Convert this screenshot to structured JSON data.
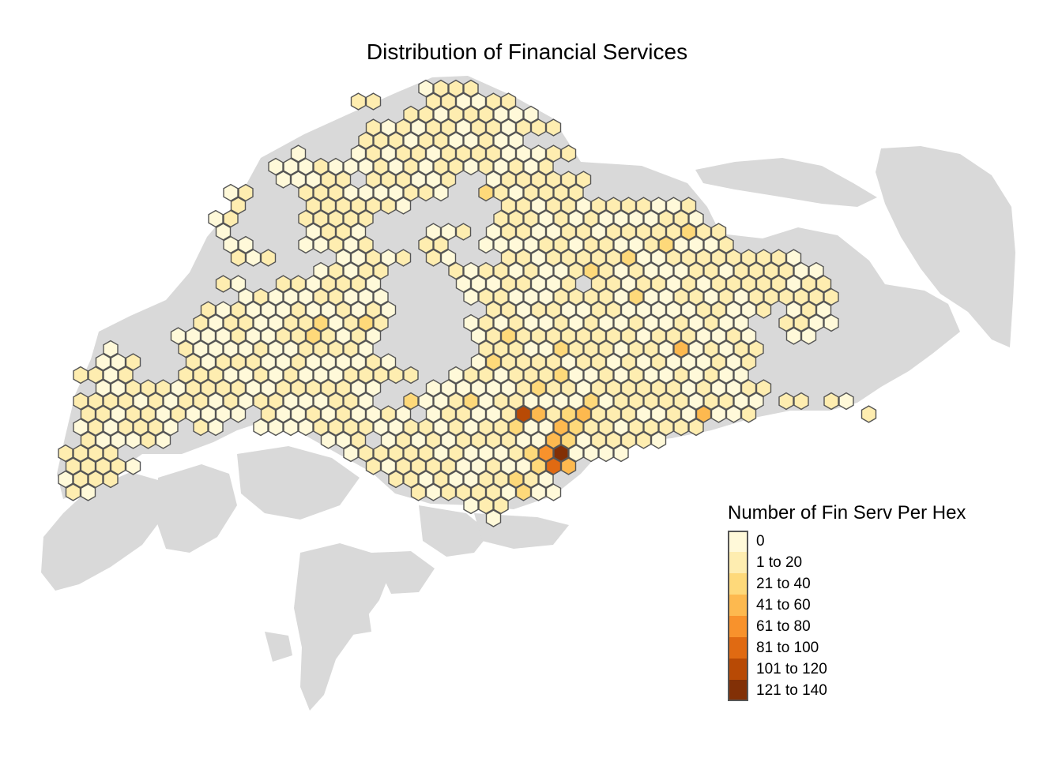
{
  "title": "Distribution of Financial Services",
  "legend": {
    "title": "Number of Fin Serv Per Hex",
    "classes": [
      {
        "label": "0",
        "color": "#fff9d9"
      },
      {
        "label": "1 to 20",
        "color": "#feedb0"
      },
      {
        "label": "21 to 40",
        "color": "#fed97a"
      },
      {
        "label": "41 to 60",
        "color": "#fdb94f"
      },
      {
        "label": "61 to 80",
        "color": "#f8922c"
      },
      {
        "label": "81 to 100",
        "color": "#e06a12"
      },
      {
        "label": "101 to 120",
        "color": "#b84a05"
      },
      {
        "label": "121 to 140",
        "color": "#823006"
      }
    ]
  },
  "colors": {
    "land": "#d9d9d9",
    "hex_border": "#555555"
  }
}
